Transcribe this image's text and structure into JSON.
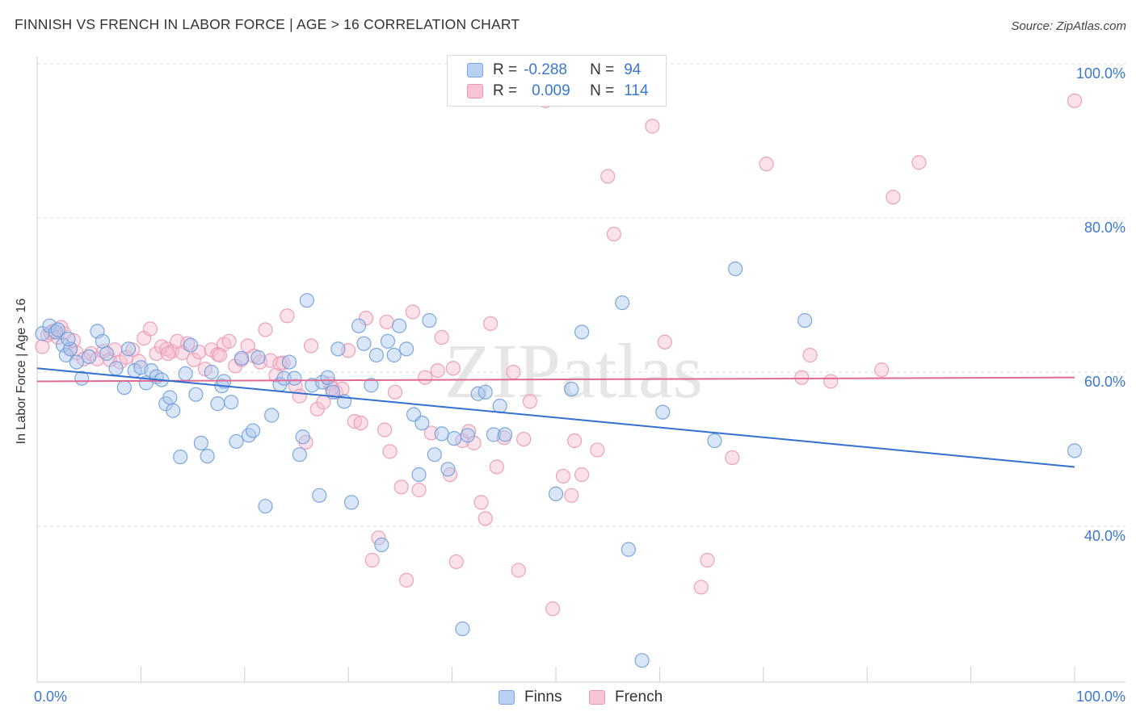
{
  "title": "FINNISH VS FRENCH IN LABOR FORCE | AGE > 16 CORRELATION CHART",
  "source": "Source: ZipAtlas.com",
  "watermark": "ZIPatlas",
  "legend": {
    "finns": {
      "r_label": "R =",
      "r_value": "-0.288",
      "n_label": "N =",
      "n_value": "94"
    },
    "french": {
      "r_label": "R =",
      "r_value": "0.009",
      "n_label": "N =",
      "n_value": "114"
    }
  },
  "bottom_legend": {
    "finns": "Finns",
    "french": "French"
  },
  "colors": {
    "finns_fill": "#aac8f0",
    "finns_stroke": "#6f9fdc",
    "finns_line": "#3370d0",
    "french_fill": "#f6bfd0",
    "french_stroke": "#eb97b2",
    "french_line": "#e06a92",
    "tick_label": "#3a78d0"
  },
  "chart_data": {
    "type": "scatter",
    "title": "FINNISH VS FRENCH IN LABOR FORCE | AGE > 16 CORRELATION CHART",
    "xlabel": "",
    "ylabel": "In Labor Force | Age > 16",
    "xlim": [
      0,
      100
    ],
    "ylim": [
      20,
      102
    ],
    "x_tick_labels": [
      "0.0%",
      "100.0%"
    ],
    "y_ticks": [
      40,
      60,
      80,
      100
    ],
    "y_tick_labels": [
      "40.0%",
      "60.0%",
      "80.0%",
      "100.0%"
    ],
    "grid": true,
    "legend_position": "top-center",
    "series": [
      {
        "name": "Finns",
        "r": -0.288,
        "n": 94,
        "trend": {
          "x": [
            0,
            100
          ],
          "y": [
            60.5,
            47.7
          ]
        },
        "points": [
          [
            0.5,
            65
          ],
          [
            1.2,
            66
          ],
          [
            1.8,
            65.2
          ],
          [
            2.5,
            63.5
          ],
          [
            2.8,
            62.2
          ],
          [
            3.2,
            63
          ],
          [
            3.8,
            61.3
          ],
          [
            4.3,
            59.2
          ],
          [
            5,
            62
          ],
          [
            5.8,
            65.3
          ],
          [
            6.3,
            64
          ],
          [
            6.7,
            62.4
          ],
          [
            7.6,
            60.5
          ],
          [
            8.4,
            58
          ],
          [
            8.8,
            63
          ],
          [
            9.4,
            60.2
          ],
          [
            10,
            60.6
          ],
          [
            10.5,
            58.6
          ],
          [
            11,
            60.2
          ],
          [
            11.5,
            59.4
          ],
          [
            12,
            59
          ],
          [
            12.4,
            55.9
          ],
          [
            12.8,
            56.7
          ],
          [
            13.1,
            55
          ],
          [
            13.8,
            49
          ],
          [
            14.3,
            59.8
          ],
          [
            14.8,
            63.5
          ],
          [
            15.3,
            57.1
          ],
          [
            15.8,
            50.8
          ],
          [
            16.4,
            49.1
          ],
          [
            16.8,
            60
          ],
          [
            17.4,
            55.9
          ],
          [
            17.8,
            58.2
          ],
          [
            18,
            58.8
          ],
          [
            18.7,
            56.1
          ],
          [
            19.2,
            51
          ],
          [
            19.7,
            61.8
          ],
          [
            20.4,
            51.8
          ],
          [
            20.8,
            52.4
          ],
          [
            21.3,
            61.9
          ],
          [
            22,
            42.6
          ],
          [
            22.6,
            54.4
          ],
          [
            23.4,
            58.4
          ],
          [
            23.8,
            59.2
          ],
          [
            24.3,
            61.3
          ],
          [
            24.8,
            59.2
          ],
          [
            25.3,
            49.3
          ],
          [
            25.6,
            51.6
          ],
          [
            26,
            69.3
          ],
          [
            26.5,
            58.3
          ],
          [
            27.2,
            44
          ],
          [
            27.5,
            58.7
          ],
          [
            28,
            59.3
          ],
          [
            28.5,
            57.4
          ],
          [
            29,
            63
          ],
          [
            29.6,
            56.2
          ],
          [
            30.3,
            43.1
          ],
          [
            31,
            66
          ],
          [
            31.5,
            63.7
          ],
          [
            32.2,
            58.3
          ],
          [
            32.7,
            62.2
          ],
          [
            33.2,
            37.6
          ],
          [
            33.8,
            64
          ],
          [
            34.4,
            62.2
          ],
          [
            34.9,
            66
          ],
          [
            35.6,
            63
          ],
          [
            36.3,
            54.5
          ],
          [
            36.8,
            46.7
          ],
          [
            37.1,
            53.4
          ],
          [
            37.8,
            66.7
          ],
          [
            38.3,
            49.3
          ],
          [
            39,
            52
          ],
          [
            39.6,
            47.4
          ],
          [
            40.2,
            51.4
          ],
          [
            41,
            26.7
          ],
          [
            41.5,
            51.8
          ],
          [
            42.5,
            57.2
          ],
          [
            43.2,
            57.4
          ],
          [
            44,
            51.9
          ],
          [
            44.6,
            55.6
          ],
          [
            45.1,
            51.9
          ],
          [
            50,
            44.2
          ],
          [
            51.5,
            57.8
          ],
          [
            52.5,
            65.2
          ],
          [
            56.4,
            69
          ],
          [
            57,
            37
          ],
          [
            58.3,
            22.6
          ],
          [
            60.3,
            54.8
          ],
          [
            65.3,
            51.1
          ],
          [
            67.3,
            73.4
          ],
          [
            74,
            66.7
          ],
          [
            100,
            49.8
          ],
          [
            2,
            65.5
          ],
          [
            3,
            64.3
          ]
        ]
      },
      {
        "name": "French",
        "r": 0.009,
        "n": 114,
        "trend": {
          "x": [
            0,
            100
          ],
          "y": [
            58.8,
            59.3
          ]
        },
        "points": [
          [
            0.5,
            63.3
          ],
          [
            1,
            64.8
          ],
          [
            1.5,
            65.3
          ],
          [
            2,
            64.5
          ],
          [
            2.6,
            65
          ],
          [
            3.2,
            63
          ],
          [
            3.8,
            62.5
          ],
          [
            4.5,
            61.7
          ],
          [
            5.2,
            62.4
          ],
          [
            5.8,
            61.7
          ],
          [
            6.4,
            62.7
          ],
          [
            7,
            61.6
          ],
          [
            7.5,
            62.9
          ],
          [
            8,
            61.3
          ],
          [
            8.6,
            61.9
          ],
          [
            9.2,
            62.9
          ],
          [
            9.8,
            61.4
          ],
          [
            10.3,
            64.4
          ],
          [
            10.9,
            65.6
          ],
          [
            11.5,
            62.4
          ],
          [
            12,
            63.3
          ],
          [
            12.5,
            63
          ],
          [
            13,
            62.7
          ],
          [
            13.5,
            64
          ],
          [
            14,
            62.5
          ],
          [
            14.5,
            63.7
          ],
          [
            15.1,
            61.6
          ],
          [
            15.6,
            62.6
          ],
          [
            16.2,
            60.4
          ],
          [
            16.8,
            62.9
          ],
          [
            17.4,
            62.3
          ],
          [
            18,
            63.6
          ],
          [
            18.5,
            64
          ],
          [
            19.1,
            60.8
          ],
          [
            19.7,
            61.6
          ],
          [
            20.3,
            63.4
          ],
          [
            20.9,
            62.1
          ],
          [
            21.5,
            61.3
          ],
          [
            22,
            65.5
          ],
          [
            22.5,
            61.5
          ],
          [
            23,
            59.6
          ],
          [
            23.7,
            61.2
          ],
          [
            24.1,
            67.3
          ],
          [
            24.9,
            58.2
          ],
          [
            25.3,
            56.9
          ],
          [
            25.9,
            50.9
          ],
          [
            26.4,
            63.4
          ],
          [
            27,
            55.2
          ],
          [
            27.6,
            56.1
          ],
          [
            28.2,
            58.5
          ],
          [
            28.8,
            57.4
          ],
          [
            29.4,
            57.8
          ],
          [
            30,
            62.8
          ],
          [
            30.6,
            53.6
          ],
          [
            31.2,
            53.4
          ],
          [
            31.7,
            67
          ],
          [
            32.3,
            35.6
          ],
          [
            32.9,
            38.5
          ],
          [
            33.5,
            52.5
          ],
          [
            34,
            49.7
          ],
          [
            34.5,
            57.4
          ],
          [
            35.1,
            45.1
          ],
          [
            35.6,
            33
          ],
          [
            36.2,
            67.8
          ],
          [
            36.8,
            44.7
          ],
          [
            37.4,
            59.3
          ],
          [
            38,
            52.1
          ],
          [
            38.6,
            60.2
          ],
          [
            39,
            64.5
          ],
          [
            39.8,
            46.7
          ],
          [
            40.4,
            35.4
          ],
          [
            41,
            51.1
          ],
          [
            41.6,
            52.3
          ],
          [
            42.1,
            50.8
          ],
          [
            42.8,
            43.1
          ],
          [
            43.2,
            41
          ],
          [
            43.7,
            66.3
          ],
          [
            44.3,
            47.7
          ],
          [
            45,
            51.5
          ],
          [
            45.9,
            60
          ],
          [
            46.4,
            34.3
          ],
          [
            46.9,
            51.3
          ],
          [
            47.5,
            56.2
          ],
          [
            49,
            95.2
          ],
          [
            49.7,
            29.3
          ],
          [
            50.7,
            46.5
          ],
          [
            51.5,
            44
          ],
          [
            51.8,
            51.1
          ],
          [
            52.5,
            46.7
          ],
          [
            54,
            49.9
          ],
          [
            55,
            85.4
          ],
          [
            55.6,
            77.9
          ],
          [
            59.3,
            91.9
          ],
          [
            60.5,
            63.9
          ],
          [
            64,
            32.1
          ],
          [
            64.6,
            35.6
          ],
          [
            67,
            48.9
          ],
          [
            70.3,
            87
          ],
          [
            73.7,
            59.3
          ],
          [
            74.5,
            62.2
          ],
          [
            76.5,
            58.8
          ],
          [
            81.4,
            60.3
          ],
          [
            82.5,
            82.7
          ],
          [
            85,
            87.2
          ],
          [
            1.3,
            65.1
          ],
          [
            2.3,
            65.8
          ],
          [
            3.5,
            64.1
          ],
          [
            12.6,
            62.4
          ],
          [
            17.6,
            62.2
          ],
          [
            23.4,
            61.1
          ],
          [
            28.4,
            57.9
          ],
          [
            33.7,
            66.5
          ],
          [
            40.1,
            60.5
          ],
          [
            100,
            95.2
          ]
        ]
      }
    ]
  }
}
